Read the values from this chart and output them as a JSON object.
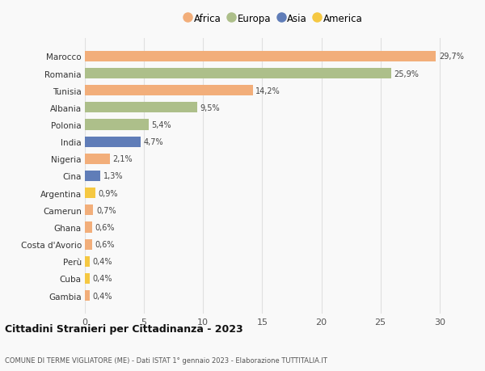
{
  "countries": [
    "Marocco",
    "Romania",
    "Tunisia",
    "Albania",
    "Polonia",
    "India",
    "Nigeria",
    "Cina",
    "Argentina",
    "Camerun",
    "Ghana",
    "Costa d'Avorio",
    "Perù",
    "Cuba",
    "Gambia"
  ],
  "values": [
    29.7,
    25.9,
    14.2,
    9.5,
    5.4,
    4.7,
    2.1,
    1.3,
    0.9,
    0.7,
    0.6,
    0.6,
    0.4,
    0.4,
    0.4
  ],
  "labels": [
    "29,7%",
    "25,9%",
    "14,2%",
    "9,5%",
    "5,4%",
    "4,7%",
    "2,1%",
    "1,3%",
    "0,9%",
    "0,7%",
    "0,6%",
    "0,6%",
    "0,4%",
    "0,4%",
    "0,4%"
  ],
  "continents": [
    "Africa",
    "Europa",
    "Africa",
    "Europa",
    "Europa",
    "Asia",
    "Africa",
    "Asia",
    "America",
    "Africa",
    "Africa",
    "Africa",
    "America",
    "America",
    "Africa"
  ],
  "colors": {
    "Africa": "#F2AE7A",
    "Europa": "#ADBF8A",
    "Asia": "#607DB8",
    "America": "#F5C842"
  },
  "legend_order": [
    "Africa",
    "Europa",
    "Asia",
    "America"
  ],
  "title": "Cittadini Stranieri per Cittadinanza - 2023",
  "subtitle": "COMUNE DI TERME VIGLIATORE (ME) - Dati ISTAT 1° gennaio 2023 - Elaborazione TUTTITALIA.IT",
  "xlim": [
    0,
    32
  ],
  "xticks": [
    0,
    5,
    10,
    15,
    20,
    25,
    30
  ],
  "bg_color": "#f9f9f9",
  "grid_color": "#e0e0e0"
}
